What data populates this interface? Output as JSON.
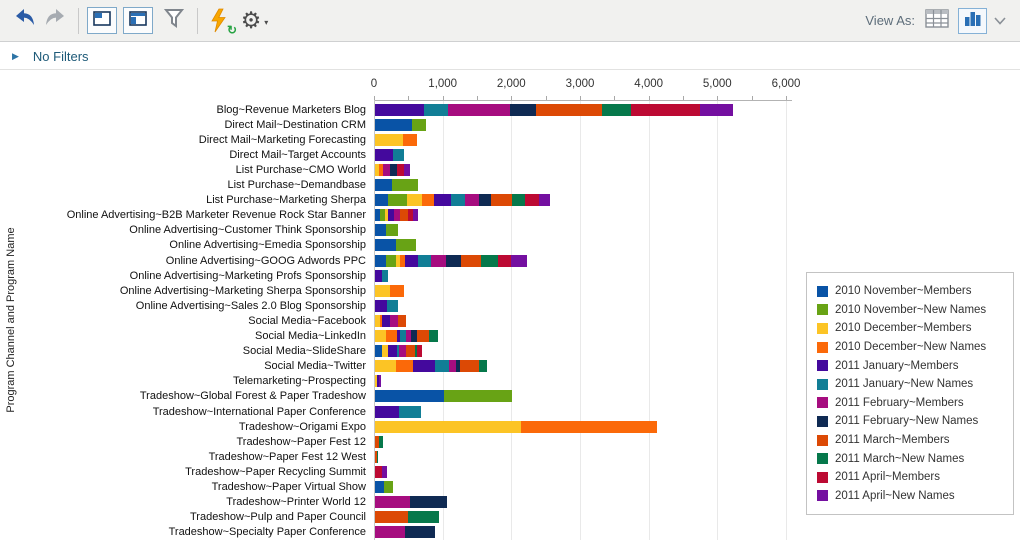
{
  "toolbar": {
    "icons": [
      "undo",
      "redo",
      "layout-panel-topleft",
      "layout-panel-header",
      "filter-funnel",
      "run-refresh",
      "settings-gear"
    ],
    "view_as_label": "View As:",
    "view_as_options": [
      "table-view",
      "chart-view"
    ],
    "view_as_selected": "chart-view"
  },
  "filter_bar": {
    "label": "No Filters",
    "expand_icon": "right-triangle"
  },
  "chart_data": {
    "type": "bar",
    "orientation": "horizontal",
    "stacked": true,
    "title": "",
    "xlabel": "",
    "ylabel": "Program Channel and Program Name",
    "xlim": [
      0,
      6000
    ],
    "x_ticks": [
      0,
      1000,
      2000,
      3000,
      4000,
      5000,
      6000
    ],
    "x_tick_labels": [
      "0",
      "1,000",
      "2,000",
      "3,000",
      "4,000",
      "5,000",
      "6,000"
    ],
    "grid": true,
    "legend_position": "right",
    "series": [
      {
        "name": "2010 November~Members",
        "color": "#0953A6"
      },
      {
        "name": "2010 November~New Names",
        "color": "#68A315"
      },
      {
        "name": "2010 December~Members",
        "color": "#FCC425"
      },
      {
        "name": "2010 December~New Names",
        "color": "#FB6909"
      },
      {
        "name": "2011 January~Members",
        "color": "#44099D"
      },
      {
        "name": "2011 January~New Names",
        "color": "#117E96"
      },
      {
        "name": "2011 February~Members",
        "color": "#A60D7F"
      },
      {
        "name": "2011 February~New Names",
        "color": "#0F2A53"
      },
      {
        "name": "2011 March~Members",
        "color": "#DC4905"
      },
      {
        "name": "2011 March~New Names",
        "color": "#06784B"
      },
      {
        "name": "2011 April~Members",
        "color": "#BC0A33"
      },
      {
        "name": "2011 April~New Names",
        "color": "#740FA0"
      }
    ],
    "categories": [
      "Blog~Revenue Marketers Blog",
      "Direct Mail~Destination CRM",
      "Direct Mail~Marketing Forecasting",
      "Direct Mail~Target Accounts",
      "List Purchase~CMO World",
      "List Purchase~Demandbase",
      "List Purchase~Marketing Sherpa",
      "Online Advertising~B2B Marketer Revenue Rock Star Banner",
      "Online Advertising~Customer Think Sponsorship",
      "Online Advertising~Emedia Sponsorship",
      "Online Advertising~GOOG Adwords PPC",
      "Online Advertising~Marketing Profs Sponsorship",
      "Online Advertising~Marketing Sherpa Sponsorship",
      "Online Advertising~Sales 2.0 Blog Sponsorship",
      "Social Media~Facebook",
      "Social Media~LinkedIn",
      "Social Media~SlideShare",
      "Social Media~Twitter",
      "Telemarketing~Prospecting",
      "Tradeshow~Global Forest & Paper Tradeshow",
      "Tradeshow~International Paper Conference",
      "Tradeshow~Origami Expo",
      "Tradeshow~Paper Fest 12",
      "Tradeshow~Paper Fest 12 West",
      "Tradeshow~Paper Recycling Summit",
      "Tradeshow~Paper Virtual Show",
      "Tradeshow~Printer World 12",
      "Tradeshow~Pulp and Paper Council",
      "Tradeshow~Specialty Paper Conference"
    ],
    "values": [
      [
        0,
        0,
        0,
        0,
        720,
        340,
        910,
        370,
        970,
        420,
        1010,
        470
      ],
      [
        540,
        200,
        0,
        0,
        0,
        0,
        0,
        0,
        0,
        0,
        0,
        0
      ],
      [
        0,
        0,
        410,
        195,
        0,
        0,
        0,
        0,
        0,
        0,
        0,
        0
      ],
      [
        0,
        0,
        0,
        0,
        265,
        155,
        0,
        0,
        0,
        0,
        0,
        0
      ],
      [
        0,
        0,
        60,
        50,
        0,
        0,
        110,
        100,
        0,
        0,
        110,
        80
      ],
      [
        245,
        380,
        0,
        0,
        0,
        0,
        0,
        0,
        0,
        0,
        0,
        0
      ],
      [
        190,
        270,
        230,
        175,
        240,
        200,
        210,
        170,
        305,
        195,
        205,
        160
      ],
      [
        80,
        60,
        45,
        0,
        95,
        0,
        90,
        0,
        105,
        0,
        80,
        65
      ],
      [
        165,
        165,
        0,
        0,
        0,
        0,
        0,
        0,
        0,
        0,
        0,
        0
      ],
      [
        310,
        290,
        0,
        0,
        0,
        0,
        0,
        0,
        0,
        0,
        0,
        0
      ],
      [
        160,
        145,
        60,
        65,
        190,
        190,
        230,
        215,
        290,
        240,
        200,
        235
      ],
      [
        0,
        0,
        0,
        0,
        105,
        80,
        0,
        0,
        0,
        0,
        0,
        0
      ],
      [
        0,
        0,
        225,
        195,
        0,
        0,
        0,
        0,
        0,
        0,
        0,
        0
      ],
      [
        0,
        0,
        0,
        0,
        180,
        155,
        0,
        0,
        0,
        0,
        0,
        0
      ],
      [
        0,
        0,
        75,
        30,
        115,
        0,
        115,
        0,
        115,
        0,
        0,
        0
      ],
      [
        0,
        0,
        160,
        160,
        50,
        80,
        80,
        80,
        180,
        130,
        0,
        0
      ],
      [
        100,
        0,
        90,
        0,
        130,
        25,
        105,
        0,
        130,
        30,
        75,
        0
      ],
      [
        0,
        0,
        300,
        250,
        325,
        200,
        100,
        60,
        280,
        120,
        0,
        0
      ],
      [
        0,
        0,
        30,
        0,
        30,
        0,
        0,
        0,
        0,
        0,
        0,
        25
      ],
      [
        1000,
        1000,
        0,
        0,
        0,
        0,
        0,
        0,
        0,
        0,
        0,
        0
      ],
      [
        0,
        0,
        0,
        0,
        350,
        320,
        0,
        0,
        0,
        0,
        0,
        0
      ],
      [
        0,
        0,
        2130,
        1980,
        0,
        0,
        0,
        0,
        0,
        0,
        0,
        0
      ],
      [
        0,
        0,
        0,
        0,
        0,
        0,
        0,
        0,
        60,
        60,
        0,
        0
      ],
      [
        0,
        0,
        0,
        0,
        0,
        0,
        0,
        0,
        25,
        20,
        0,
        0
      ],
      [
        0,
        0,
        0,
        0,
        0,
        0,
        0,
        0,
        0,
        0,
        100,
        80
      ],
      [
        125,
        135,
        0,
        0,
        0,
        0,
        0,
        0,
        0,
        0,
        0,
        0
      ],
      [
        0,
        0,
        0,
        0,
        0,
        0,
        515,
        540,
        0,
        0,
        0,
        0
      ],
      [
        0,
        0,
        0,
        0,
        0,
        0,
        0,
        0,
        480,
        450,
        0,
        0
      ],
      [
        0,
        0,
        0,
        0,
        0,
        0,
        435,
        445,
        0,
        0,
        0,
        0
      ]
    ]
  }
}
